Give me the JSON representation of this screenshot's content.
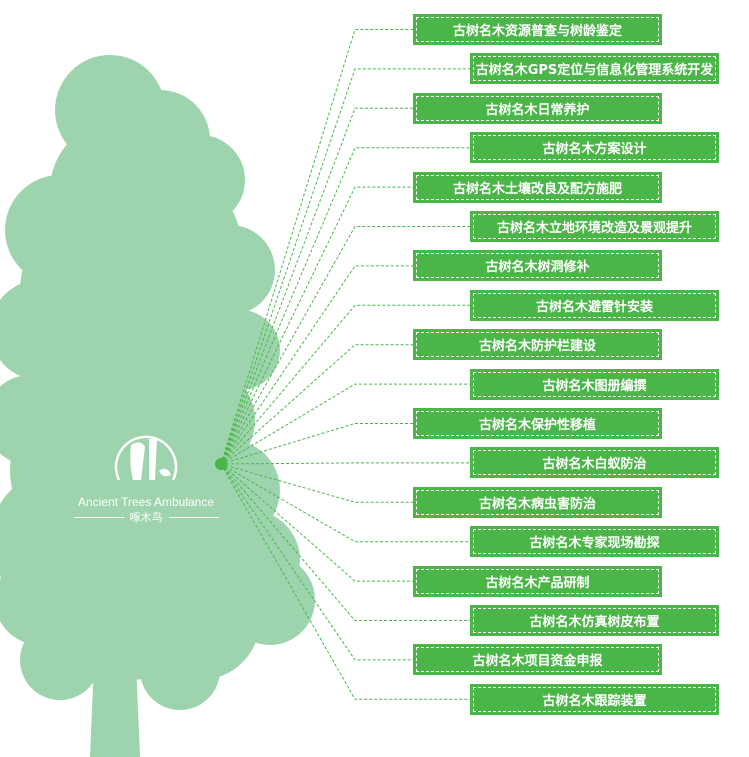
{
  "colors": {
    "tree": "#9dd4ad",
    "box": "#4bb648",
    "line": "#4bb648"
  },
  "logo": {
    "name_en": "Ancient Trees Ambulance",
    "name_cn": "啄木鸟",
    "icon": "woodpecker-logo-icon"
  },
  "items": [
    "古树名木资源普查与树龄鉴定",
    "古树名木GPS定位与信息化管理系统开发",
    "古树名木日常养护",
    "古树名木方案设计",
    "古树名木土壤改良及配方施肥",
    "古树名木立地环境改造及景观提升",
    "古树名木树洞修补",
    "古树名木避雷针安装",
    "古树名木防护栏建设",
    "古树名木图册编撰",
    "古树名木保护性移植",
    "古树名木白蚁防治",
    "古树名木病虫害防治",
    "古树名木专家现场勘探",
    "古树名木产品研制",
    "古树名木仿真树皮布置",
    "古树名木项目资金申报",
    "古树名木跟踪装置"
  ]
}
